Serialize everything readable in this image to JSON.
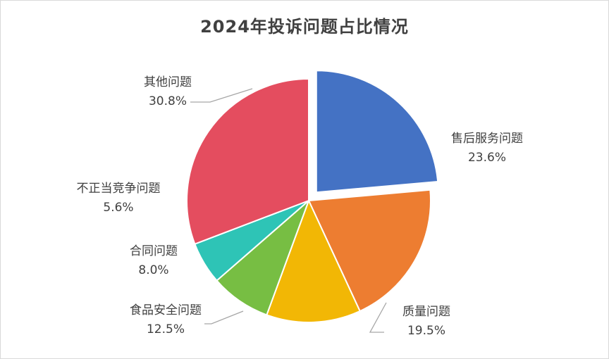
{
  "chart_data": {
    "type": "pie",
    "title": "2024年投诉问题占比情况",
    "slices": [
      {
        "name": "售后服务问题",
        "value": 23.6,
        "value_label": "23.6%",
        "color": "#4472C4",
        "exploded": true
      },
      {
        "name": "质量问题",
        "value": 19.5,
        "value_label": "19.5%",
        "color": "#ED7D31",
        "exploded": false
      },
      {
        "name": "食品安全问题",
        "value": 12.5,
        "value_label": "12.5%",
        "color": "#F2B705",
        "exploded": false
      },
      {
        "name": "合同问题",
        "value": 8.0,
        "value_label": "8.0%",
        "color": "#77BE43",
        "exploded": false
      },
      {
        "name": "不正当竞争问题",
        "value": 5.6,
        "value_label": "5.6%",
        "color": "#2EC4B6",
        "exploded": false
      },
      {
        "name": "其他问题",
        "value": 30.8,
        "value_label": "30.8%",
        "color": "#E44D5F",
        "exploded": false
      }
    ],
    "start_angle": "top, clockwise",
    "legend": "none",
    "data_labels": "outside with leader lines"
  }
}
